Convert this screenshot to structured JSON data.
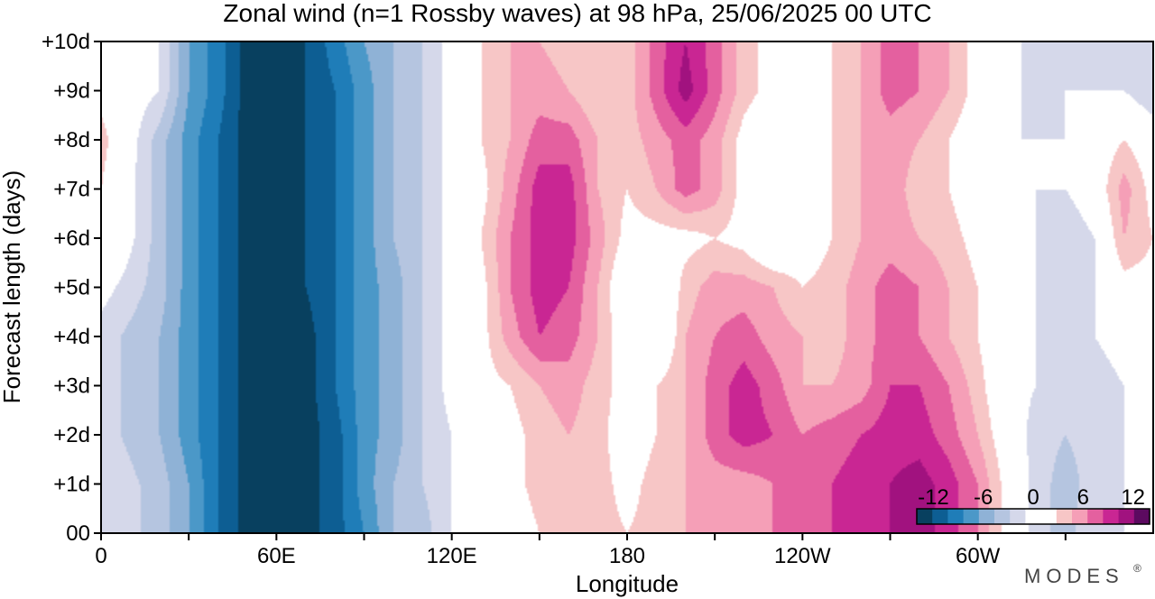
{
  "chart_data": {
    "type": "heatmap",
    "title": "Zonal wind (n=1 Rossby waves) at 98 hPa,  25/06/2025  00 UTC",
    "xlabel": "Longitude",
    "ylabel": "Forecast length (days)",
    "x_tick_labels": [
      "0",
      "60E",
      "120E",
      "180",
      "120W",
      "60W"
    ],
    "x_ticks_lon": [
      0,
      60,
      120,
      180,
      240,
      300
    ],
    "xlim": [
      0,
      360
    ],
    "y_tick_labels": [
      "00",
      "+1d",
      "+2d",
      "+3d",
      "+4d",
      "+5d",
      "+6d",
      "+7d",
      "+8d",
      "+9d",
      "+10d"
    ],
    "ylim": [
      0,
      10
    ],
    "colorbar": {
      "tick_labels": [
        "-12",
        "-6",
        "0",
        "6",
        "12"
      ],
      "levels": [
        -14,
        -12,
        -10,
        -8,
        -6,
        -4,
        -2,
        0,
        2,
        4,
        6,
        8,
        10,
        12,
        14
      ],
      "colors": [
        "#08405f",
        "#0d5e93",
        "#1f7db8",
        "#4b98c8",
        "#8fb2d6",
        "#b5c5e0",
        "#d5d8ea",
        "#ffffff",
        "#ffffff",
        "#f7c6c6",
        "#f59fb7",
        "#e4609f",
        "#c92693",
        "#a1127f",
        "#5c0a60"
      ]
    },
    "data_lon": [
      0,
      20,
      30,
      40,
      50,
      60,
      70,
      80,
      90,
      100,
      110,
      120,
      130,
      140,
      150,
      160,
      170,
      180,
      190,
      200,
      210,
      220,
      230,
      240,
      250,
      260,
      270,
      280,
      290,
      300,
      310,
      320,
      330,
      340,
      350,
      360
    ],
    "data_day": [
      0,
      1,
      2,
      3,
      4,
      5,
      6,
      7,
      8,
      9,
      10
    ],
    "values": [
      [
        0,
        -3,
        -6,
        -10,
        -13,
        -14,
        -13,
        -11,
        -8,
        -4,
        -3,
        0,
        2,
        2,
        4,
        5,
        5,
        4,
        5,
        6,
        7,
        7,
        8,
        9,
        10,
        11,
        12,
        13,
        11,
        8,
        3,
        -1,
        -3,
        0,
        0,
        0
      ],
      [
        0,
        -3,
        -6,
        -10,
        -13,
        -14,
        -13,
        -11,
        -7,
        -4,
        -2,
        0,
        2,
        3,
        5,
        6,
        5,
        3,
        5,
        6,
        7,
        7,
        8,
        9,
        10,
        11,
        12,
        13,
        11,
        8,
        3,
        -1,
        -3,
        -1,
        0,
        0
      ],
      [
        -1,
        -4,
        -7,
        -10,
        -13,
        -14,
        -13,
        -11,
        -7,
        -5,
        -2,
        0,
        2,
        3,
        5,
        6,
        5,
        2,
        4,
        6,
        9,
        11,
        10,
        8,
        9,
        10,
        11,
        11,
        9,
        6,
        2,
        -1,
        -2,
        -1,
        0,
        0
      ],
      [
        -1,
        -4,
        -7,
        -10,
        -13,
        -14,
        -13,
        -10,
        -7,
        -5,
        -2,
        1,
        3,
        4,
        6,
        7,
        5,
        3,
        4,
        6,
        9,
        11,
        9,
        6,
        6,
        7,
        10,
        10,
        8,
        5,
        1,
        0,
        -1,
        -1,
        0,
        0
      ],
      [
        -1,
        -4,
        -7,
        -10,
        -13,
        -14,
        -13,
        -10,
        -7,
        -5,
        -2,
        1,
        3,
        7,
        10,
        9,
        6,
        2,
        0,
        6,
        8,
        9,
        7,
        6,
        5,
        7,
        9,
        8,
        6,
        4,
        1,
        0,
        0,
        0,
        1,
        1
      ],
      [
        1,
        -3,
        -7,
        -10,
        -13,
        -14,
        -12,
        -10,
        -7,
        -5,
        -2,
        1,
        3,
        8,
        11,
        10,
        6,
        1,
        0,
        5,
        7,
        7,
        6,
        4,
        5,
        7,
        9,
        8,
        6,
        4,
        1,
        0,
        -2,
        0,
        3,
        3
      ],
      [
        4,
        -3,
        -7,
        -10,
        -13,
        -14,
        -12,
        -10,
        -7,
        -4,
        -2,
        1,
        4,
        8,
        11,
        11,
        7,
        3,
        3,
        3,
        4,
        3,
        0,
        2,
        4,
        6,
        7,
        6,
        5,
        3,
        1,
        0,
        -2,
        0,
        6,
        4
      ],
      [
        4,
        -3,
        -7,
        -10,
        -13,
        -14,
        -12,
        -10,
        -7,
        -4,
        -2,
        1,
        3,
        7,
        11,
        11,
        6,
        4,
        6,
        9,
        7,
        3,
        1,
        2,
        4,
        6,
        7,
        5,
        4,
        2,
        0,
        0,
        0,
        2,
        7,
        3
      ],
      [
        5,
        -3,
        -7,
        -10,
        -13,
        -13,
        -12,
        -10,
        -7,
        -4,
        -2,
        1,
        4,
        6,
        9,
        9,
        6,
        5,
        7,
        9,
        7,
        3,
        1,
        2,
        4,
        6,
        7,
        6,
        4,
        2,
        0,
        0,
        0,
        2,
        4,
        2
      ],
      [
        3,
        0,
        -6,
        -9,
        -13,
        -13,
        -12,
        -10,
        -7,
        -4,
        -2,
        1,
        4,
        6,
        7,
        6,
        4,
        5,
        9,
        13,
        9,
        5,
        3,
        2,
        4,
        6,
        9,
        8,
        6,
        3,
        1,
        -1,
        0,
        0,
        0,
        -2
      ],
      [
        3,
        0,
        -6,
        -9,
        -13,
        -13,
        -12,
        -9,
        -6,
        -4,
        -2,
        1,
        4,
        6,
        6,
        5,
        4,
        5,
        9,
        12,
        9,
        5,
        3,
        3,
        4,
        6,
        9,
        8,
        6,
        3,
        1,
        -1,
        0,
        -2,
        -2,
        -1
      ]
    ]
  },
  "branding": "MODES"
}
